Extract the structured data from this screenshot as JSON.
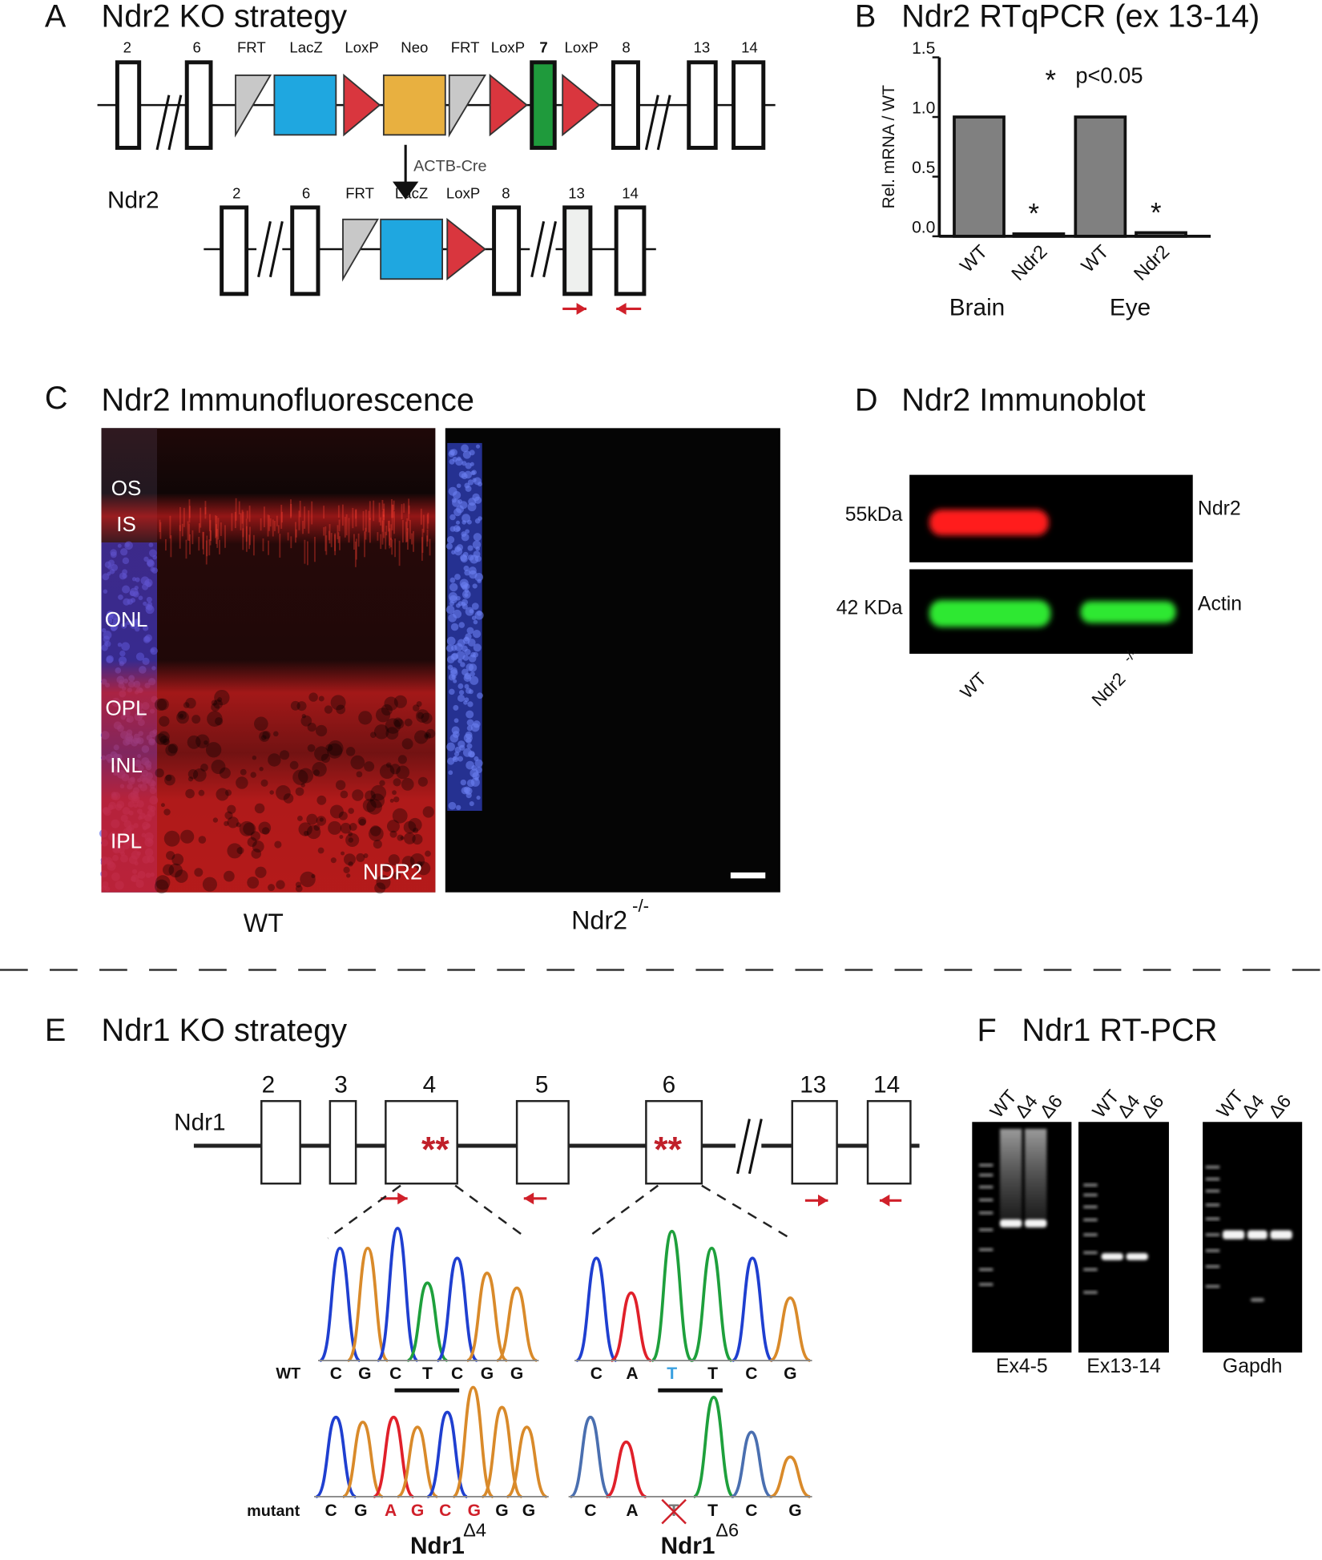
{
  "panel_a": {
    "label": "A",
    "title": "Ndr2 KO strategy",
    "top_labels": [
      "2",
      "6",
      "FRT",
      "LacZ",
      "LoxP",
      "Neo",
      "FRT",
      "LoxP",
      "7",
      "LoxP",
      "8",
      "13",
      "14"
    ],
    "cre": "ACTB-Cre",
    "gene": "Ndr2",
    "bottom_labels": [
      "2",
      "6",
      "FRT",
      "LacZ",
      "LoxP",
      "8",
      "13",
      "14"
    ]
  },
  "chart_data": {
    "type": "bar",
    "panel_label": "B",
    "title": "Ndr2 RTqPCR (ex 13-14)",
    "y_label": "Rel. mRNA / WT",
    "categories": [
      "WT",
      "Ndr2",
      "WT",
      "Ndr2"
    ],
    "groups": [
      "Brain",
      "Eye"
    ],
    "values": [
      1,
      0.02,
      1,
      0.03
    ],
    "significance": [
      "*",
      "*"
    ],
    "annotation_marker": "*",
    "annotation": "p<0.05",
    "color": "#808080",
    "ylim": [
      0,
      1.5
    ],
    "yticks": [
      {
        "value": 0,
        "label": "0.0"
      },
      {
        "value": 0.5,
        "label": "0.5"
      },
      {
        "value": 1,
        "label": "1.0"
      },
      {
        "value": 1.5,
        "label": "1.5"
      }
    ]
  },
  "panel_c": {
    "label": "C",
    "title": "Ndr2 Immunofluorescence",
    "layers": [
      "OS",
      "IS",
      "ONL",
      "OPL",
      "INL",
      "IPL"
    ],
    "stain": "NDR2",
    "wt": "WT",
    "ko": "Ndr2",
    "ko_sup": "-/-"
  },
  "panel_d": {
    "label": "D",
    "title": "Ndr2 Immunoblot",
    "sizes": [
      "55kDa",
      "42 KDa"
    ],
    "proteins": [
      "Ndr2",
      "Actin"
    ],
    "lanes": [
      "WT",
      "Ndr2"
    ],
    "ko_sup": "-/-"
  },
  "panel_e": {
    "label": "E",
    "title": "Ndr1 KO strategy",
    "gene": "Ndr1",
    "exons": [
      "2",
      "3",
      "4",
      "5",
      "6",
      "13",
      "14"
    ],
    "mutation_marks": [
      "**",
      "**"
    ],
    "row_labels": [
      "WT",
      "mutant"
    ],
    "exon4": {
      "wt_seq": [
        "C",
        "G",
        "C",
        "T",
        "C",
        "G",
        "G"
      ],
      "mutant_seq": [
        "C",
        "G",
        "A",
        "G",
        "C",
        "G",
        "G",
        "G"
      ],
      "allele": "Ndr1",
      "allele_sup": "Δ4"
    },
    "exon6": {
      "wt_seq": [
        "C",
        "A",
        "T",
        "T",
        "C",
        "G"
      ],
      "mutant_seq": [
        "C",
        "A",
        "T",
        "T",
        "C",
        "G"
      ],
      "allele": "Ndr1",
      "allele_sup": "Δ6"
    }
  },
  "panel_f": {
    "label": "F",
    "title": "Ndr1 RT-PCR",
    "gels": [
      {
        "lanes": [
          "WT",
          "Δ4",
          "Δ6"
        ],
        "name": "Ex4-5"
      },
      {
        "lanes": [
          "WT",
          "Δ4",
          "Δ6"
        ],
        "name": "Ex13-14"
      },
      {
        "lanes": [
          "WT",
          "Δ4",
          "Δ6"
        ],
        "name": "Gapdh"
      }
    ]
  }
}
